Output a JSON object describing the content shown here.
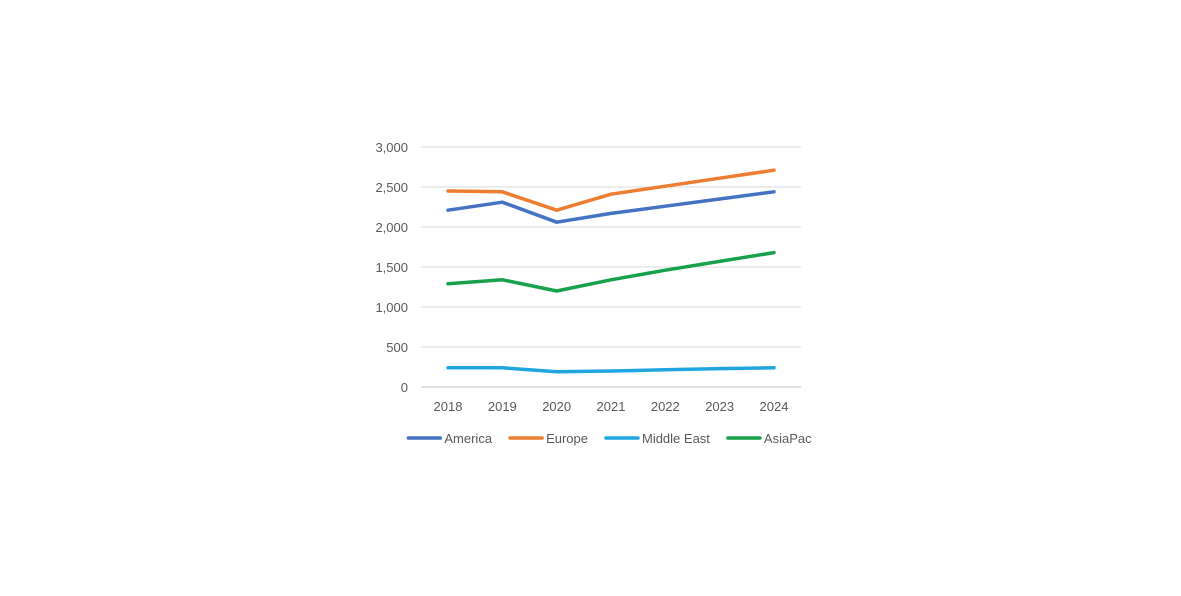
{
  "chart_data": {
    "type": "line",
    "title": "",
    "xlabel": "",
    "ylabel": "",
    "x": [
      "2018",
      "2019",
      "2020",
      "2021",
      "2022",
      "2023",
      "2024"
    ],
    "ylim": [
      0,
      3000
    ],
    "yticks": [
      0,
      500,
      1000,
      1500,
      2000,
      2500,
      3000
    ],
    "ytick_labels": [
      "0",
      "500",
      "1,000",
      "1,500",
      "2,000",
      "2,500",
      "3,000"
    ],
    "grid": true,
    "legend_position": "bottom",
    "series": [
      {
        "name": "America",
        "color": "#4472C4",
        "values": [
          2210,
          2310,
          2060,
          2170,
          2260,
          2350,
          2440
        ]
      },
      {
        "name": "Europe",
        "color": "#ED7D31",
        "values": [
          2450,
          2440,
          2210,
          2410,
          2510,
          2610,
          2710
        ]
      },
      {
        "name": "Middle East",
        "color": "#1FA6E0",
        "values": [
          240,
          240,
          190,
          200,
          215,
          230,
          240
        ]
      },
      {
        "name": "AsiaPac",
        "color": "#18A14B",
        "values": [
          1290,
          1340,
          1200,
          1340,
          1460,
          1570,
          1680
        ]
      }
    ]
  }
}
